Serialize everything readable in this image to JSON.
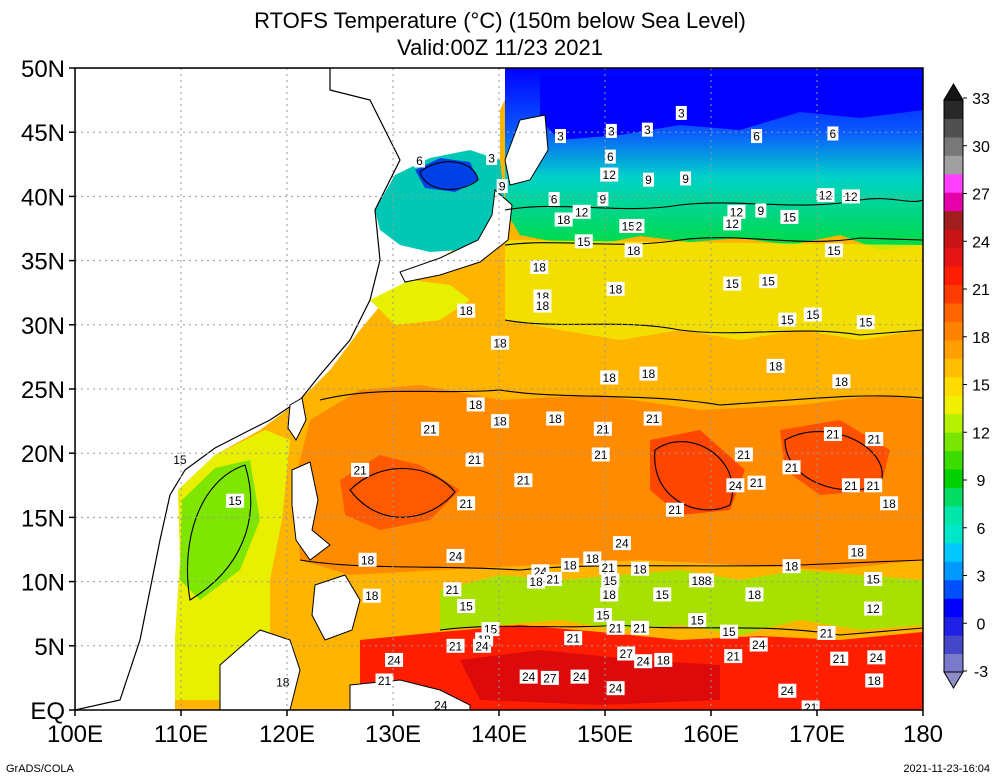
{
  "title_line1": "RTOFS Temperature (°C) (150m below Sea Level)",
  "title_line2": "Valid:00Z 11/23 2021",
  "footer_left": "GrADS/COLA",
  "footer_right": "2021-11-23-16:04",
  "map": {
    "lon_range": [
      100,
      180
    ],
    "lat_range": [
      0,
      50
    ],
    "x_ticks": [
      {
        "lon": 100,
        "label": "100E"
      },
      {
        "lon": 110,
        "label": "110E"
      },
      {
        "lon": 120,
        "label": "120E"
      },
      {
        "lon": 130,
        "label": "130E"
      },
      {
        "lon": 140,
        "label": "140E"
      },
      {
        "lon": 150,
        "label": "150E"
      },
      {
        "lon": 160,
        "label": "160E"
      },
      {
        "lon": 170,
        "label": "170E"
      },
      {
        "lon": 180,
        "label": "180"
      }
    ],
    "y_ticks": [
      {
        "lat": 0,
        "label": "EQ"
      },
      {
        "lat": 5,
        "label": "5N"
      },
      {
        "lat": 10,
        "label": "10N"
      },
      {
        "lat": 15,
        "label": "15N"
      },
      {
        "lat": 20,
        "label": "20N"
      },
      {
        "lat": 25,
        "label": "25N"
      },
      {
        "lat": 30,
        "label": "30N"
      },
      {
        "lat": 35,
        "label": "35N"
      },
      {
        "lat": 40,
        "label": "40N"
      },
      {
        "lat": 45,
        "label": "45N"
      },
      {
        "lat": 50,
        "label": "50N"
      }
    ],
    "grid": true,
    "contour_labels": [
      {
        "lon": 132.5,
        "lat": 42.8,
        "text": "6"
      },
      {
        "lon": 139.3,
        "lat": 43.0,
        "text": "3"
      },
      {
        "lon": 140.3,
        "lat": 40.8,
        "text": "9"
      },
      {
        "lon": 145.8,
        "lat": 44.7,
        "text": "3"
      },
      {
        "lon": 150.6,
        "lat": 45.1,
        "text": "3"
      },
      {
        "lon": 154.0,
        "lat": 45.2,
        "text": "3"
      },
      {
        "lon": 157.2,
        "lat": 46.5,
        "text": "3"
      },
      {
        "lon": 164.3,
        "lat": 44.7,
        "text": "6"
      },
      {
        "lon": 171.5,
        "lat": 44.9,
        "text": "6"
      },
      {
        "lon": 150.5,
        "lat": 43.1,
        "text": "6"
      },
      {
        "lon": 150.4,
        "lat": 41.7,
        "text": "12"
      },
      {
        "lon": 154.1,
        "lat": 41.3,
        "text": "9"
      },
      {
        "lon": 157.6,
        "lat": 41.4,
        "text": "9"
      },
      {
        "lon": 145.2,
        "lat": 39.8,
        "text": "6"
      },
      {
        "lon": 147.8,
        "lat": 38.8,
        "text": "12"
      },
      {
        "lon": 149.8,
        "lat": 39.8,
        "text": "9"
      },
      {
        "lon": 146.1,
        "lat": 38.2,
        "text": "18"
      },
      {
        "lon": 162.4,
        "lat": 38.8,
        "text": "12"
      },
      {
        "lon": 162.0,
        "lat": 37.9,
        "text": "12"
      },
      {
        "lon": 164.7,
        "lat": 38.9,
        "text": "9"
      },
      {
        "lon": 167.4,
        "lat": 38.4,
        "text": "15"
      },
      {
        "lon": 170.8,
        "lat": 40.1,
        "text": "12"
      },
      {
        "lon": 173.2,
        "lat": 40.0,
        "text": "12"
      },
      {
        "lon": 152.2,
        "lat": 37.7,
        "text": "15"
      },
      {
        "lon": 153.2,
        "lat": 37.7,
        "text": "2"
      },
      {
        "lon": 148.0,
        "lat": 36.5,
        "text": "15"
      },
      {
        "lon": 152.7,
        "lat": 35.8,
        "text": "18"
      },
      {
        "lon": 143.8,
        "lat": 34.5,
        "text": "18"
      },
      {
        "lon": 171.6,
        "lat": 35.8,
        "text": "15"
      },
      {
        "lon": 165.4,
        "lat": 33.4,
        "text": "15"
      },
      {
        "lon": 162.0,
        "lat": 33.2,
        "text": "15"
      },
      {
        "lon": 151.0,
        "lat": 32.8,
        "text": "18"
      },
      {
        "lon": 144.1,
        "lat": 32.2,
        "text": "18"
      },
      {
        "lon": 144.1,
        "lat": 31.5,
        "text": "18"
      },
      {
        "lon": 136.9,
        "lat": 31.1,
        "text": "18"
      },
      {
        "lon": 167.2,
        "lat": 30.4,
        "text": "15"
      },
      {
        "lon": 169.6,
        "lat": 30.8,
        "text": "15"
      },
      {
        "lon": 174.6,
        "lat": 30.2,
        "text": "15"
      },
      {
        "lon": 140.1,
        "lat": 28.6,
        "text": "18"
      },
      {
        "lon": 166.1,
        "lat": 26.8,
        "text": "18"
      },
      {
        "lon": 150.4,
        "lat": 25.9,
        "text": "18"
      },
      {
        "lon": 154.1,
        "lat": 26.2,
        "text": "18"
      },
      {
        "lon": 172.3,
        "lat": 25.6,
        "text": "18"
      },
      {
        "lon": 137.8,
        "lat": 23.8,
        "text": "18"
      },
      {
        "lon": 140.1,
        "lat": 22.5,
        "text": "18"
      },
      {
        "lon": 145.3,
        "lat": 22.7,
        "text": "18"
      },
      {
        "lon": 154.5,
        "lat": 22.7,
        "text": "21"
      },
      {
        "lon": 149.8,
        "lat": 21.9,
        "text": "21"
      },
      {
        "lon": 133.5,
        "lat": 21.9,
        "text": "21"
      },
      {
        "lon": 171.5,
        "lat": 21.5,
        "text": "21"
      },
      {
        "lon": 175.4,
        "lat": 21.1,
        "text": "21"
      },
      {
        "lon": 109.9,
        "lat": 19.5,
        "text": "15"
      },
      {
        "lon": 137.7,
        "lat": 19.5,
        "text": "21"
      },
      {
        "lon": 149.6,
        "lat": 19.9,
        "text": "21"
      },
      {
        "lon": 163.1,
        "lat": 19.9,
        "text": "21"
      },
      {
        "lon": 167.6,
        "lat": 18.9,
        "text": "21"
      },
      {
        "lon": 126.9,
        "lat": 18.7,
        "text": "21"
      },
      {
        "lon": 142.3,
        "lat": 17.9,
        "text": "21"
      },
      {
        "lon": 162.3,
        "lat": 17.5,
        "text": "24"
      },
      {
        "lon": 164.3,
        "lat": 17.7,
        "text": "21"
      },
      {
        "lon": 173.2,
        "lat": 17.5,
        "text": "21"
      },
      {
        "lon": 175.3,
        "lat": 17.5,
        "text": "21"
      },
      {
        "lon": 115.1,
        "lat": 16.3,
        "text": "15"
      },
      {
        "lon": 136.9,
        "lat": 16.1,
        "text": "21"
      },
      {
        "lon": 156.6,
        "lat": 15.6,
        "text": "21"
      },
      {
        "lon": 176.8,
        "lat": 16.1,
        "text": "18"
      },
      {
        "lon": 151.6,
        "lat": 13.0,
        "text": "24"
      },
      {
        "lon": 135.9,
        "lat": 12.0,
        "text": "24"
      },
      {
        "lon": 127.6,
        "lat": 11.7,
        "text": "18"
      },
      {
        "lon": 148.8,
        "lat": 11.8,
        "text": "18"
      },
      {
        "lon": 146.7,
        "lat": 11.3,
        "text": "18"
      },
      {
        "lon": 150.3,
        "lat": 11.1,
        "text": "21"
      },
      {
        "lon": 153.3,
        "lat": 11.0,
        "text": "18"
      },
      {
        "lon": 173.8,
        "lat": 12.3,
        "text": "18"
      },
      {
        "lon": 167.6,
        "lat": 11.2,
        "text": "18"
      },
      {
        "lon": 143.9,
        "lat": 10.8,
        "text": "24"
      },
      {
        "lon": 145.1,
        "lat": 10.2,
        "text": "21"
      },
      {
        "lon": 143.5,
        "lat": 10.0,
        "text": "18"
      },
      {
        "lon": 150.5,
        "lat": 10.1,
        "text": "15"
      },
      {
        "lon": 159.1,
        "lat": 10.1,
        "text": "188"
      },
      {
        "lon": 175.3,
        "lat": 10.2,
        "text": "15"
      },
      {
        "lon": 135.6,
        "lat": 9.4,
        "text": "21"
      },
      {
        "lon": 128.0,
        "lat": 8.9,
        "text": "18"
      },
      {
        "lon": 150.4,
        "lat": 9.0,
        "text": "18"
      },
      {
        "lon": 155.4,
        "lat": 9.0,
        "text": "15"
      },
      {
        "lon": 164.1,
        "lat": 9.0,
        "text": "18"
      },
      {
        "lon": 136.9,
        "lat": 8.1,
        "text": "15"
      },
      {
        "lon": 175.3,
        "lat": 7.9,
        "text": "12"
      },
      {
        "lon": 149.8,
        "lat": 7.4,
        "text": "15"
      },
      {
        "lon": 158.7,
        "lat": 7.0,
        "text": "15"
      },
      {
        "lon": 139.2,
        "lat": 6.3,
        "text": "15"
      },
      {
        "lon": 138.6,
        "lat": 5.5,
        "text": "18"
      },
      {
        "lon": 147.0,
        "lat": 5.6,
        "text": "21"
      },
      {
        "lon": 151.0,
        "lat": 6.4,
        "text": "21"
      },
      {
        "lon": 153.3,
        "lat": 6.4,
        "text": "21"
      },
      {
        "lon": 161.7,
        "lat": 6.1,
        "text": "15"
      },
      {
        "lon": 170.9,
        "lat": 6.0,
        "text": "21"
      },
      {
        "lon": 135.9,
        "lat": 5.0,
        "text": "21"
      },
      {
        "lon": 138.4,
        "lat": 5.0,
        "text": "24"
      },
      {
        "lon": 164.5,
        "lat": 5.1,
        "text": "24"
      },
      {
        "lon": 130.1,
        "lat": 3.9,
        "text": "24"
      },
      {
        "lon": 152.0,
        "lat": 4.4,
        "text": "27"
      },
      {
        "lon": 153.6,
        "lat": 3.8,
        "text": "24"
      },
      {
        "lon": 155.5,
        "lat": 3.9,
        "text": "18"
      },
      {
        "lon": 162.1,
        "lat": 4.2,
        "text": "21"
      },
      {
        "lon": 172.1,
        "lat": 4.0,
        "text": "21"
      },
      {
        "lon": 175.6,
        "lat": 4.1,
        "text": "24"
      },
      {
        "lon": 129.2,
        "lat": 2.3,
        "text": "21"
      },
      {
        "lon": 119.6,
        "lat": 2.2,
        "text": "18"
      },
      {
        "lon": 142.8,
        "lat": 2.6,
        "text": "24"
      },
      {
        "lon": 144.8,
        "lat": 2.5,
        "text": "27"
      },
      {
        "lon": 147.6,
        "lat": 2.6,
        "text": "24"
      },
      {
        "lon": 151.0,
        "lat": 1.7,
        "text": "24"
      },
      {
        "lon": 167.2,
        "lat": 1.5,
        "text": "24"
      },
      {
        "lon": 175.4,
        "lat": 2.3,
        "text": "18"
      },
      {
        "lon": 134.5,
        "lat": 0.4,
        "text": "24"
      },
      {
        "lon": 169.4,
        "lat": 0.2,
        "text": "21"
      }
    ]
  },
  "colorbar": {
    "labels": [
      "33",
      "30",
      "27",
      "24",
      "21",
      "18",
      "15",
      "12",
      "9",
      "6",
      "3",
      "0",
      "-3"
    ],
    "colors": [
      "#7a7acb",
      "#4646c8",
      "#2020e6",
      "#0000ff",
      "#0050ff",
      "#0099ff",
      "#00c8ff",
      "#00e6c8",
      "#00e6aa",
      "#00dc64",
      "#00d200",
      "#3cdc00",
      "#78e600",
      "#b4f000",
      "#f0f000",
      "#ffdc00",
      "#ffbe00",
      "#ffa000",
      "#ff8200",
      "#ff6400",
      "#ff3c00",
      "#ff1e00",
      "#e61414",
      "#c81414",
      "#a01e1e",
      "#e600aa",
      "#ff40ff",
      "#a0a0a0",
      "#787878",
      "#505050",
      "#282828"
    ]
  }
}
